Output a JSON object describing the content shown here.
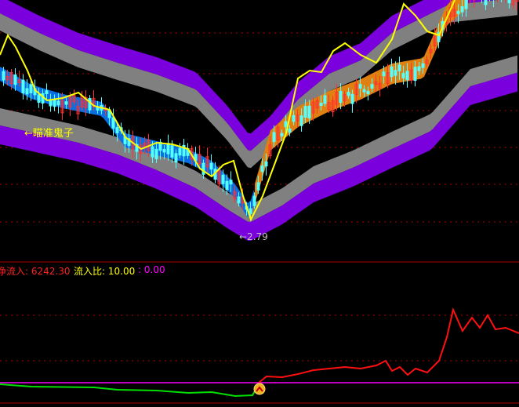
{
  "chart_data": {
    "type": "candlestick",
    "title": "",
    "annotations": [
      {
        "text": "←瞄准鬼子",
        "color": "#ffff00"
      },
      {
        "text": "←2.79",
        "color": "#c0c0c0"
      }
    ],
    "grid": true,
    "indicator": {
      "items": [
        {
          "label": "净流入:",
          "value": "6242.30",
          "color": "#ff2020"
        },
        {
          "label": "流入比:",
          "value": "10.00",
          "color": "#ffff00"
        },
        {
          "label": ":",
          "value": "0.00",
          "color": "#ff00ff"
        }
      ]
    }
  },
  "colors": {
    "up": "#ff3030",
    "down": "#54ffff",
    "band_purple": "#7a00dd",
    "band_gray": "#808080",
    "ribbon_blue": "#0a6ee0",
    "ribbon_orange": "#e08010",
    "yellow_line": "#ffff00",
    "grid": "#b00000",
    "inflow_neg": "#00e000",
    "inflow_pos": "#ff1010",
    "zero_line": "#ff00ff"
  },
  "icons": [
    "buy-signal-icon"
  ]
}
